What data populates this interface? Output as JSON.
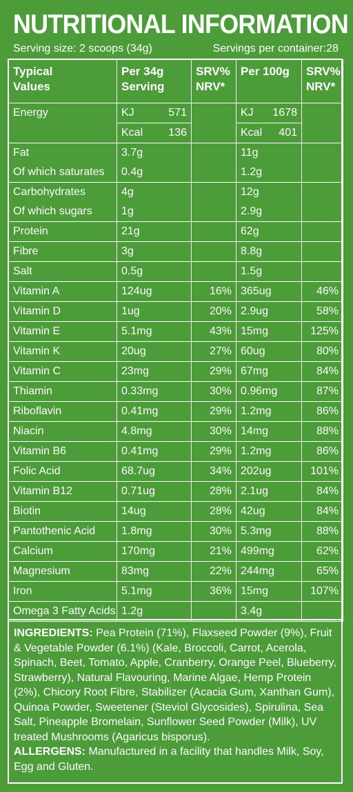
{
  "title": "NUTRITIONAL INFORMATION",
  "serving_size": "Serving size: 2 scoops (34g)",
  "servings_per_container": "Servings per container:28",
  "headers": {
    "col1": [
      "Typical",
      "Values"
    ],
    "col2": [
      "Per 34g",
      "Serving"
    ],
    "col3": [
      "SRV%",
      "NRV*"
    ],
    "col4": "Per 100g",
    "col5": [
      "SRV%",
      "NRV*"
    ]
  },
  "energy": {
    "label": "Energy",
    "kj_label": "KJ",
    "kcal_label": "Kcal",
    "per_serving_kj": "571",
    "per_serving_kcal": "136",
    "per_100g_kj": "1678",
    "per_100g_kcal": "401"
  },
  "fat": {
    "label": "Fat",
    "per_serving": "3.7g",
    "per_100g": "11g",
    "sub_label": "Of which saturates",
    "sub_per_serving": "0.4g",
    "sub_per_100g": "1.2g"
  },
  "carbs": {
    "label": "Carbohydrates",
    "per_serving": "4g",
    "per_100g": "12g",
    "sub_label": "Of which sugars",
    "sub_per_serving": "1g",
    "sub_per_100g": "2.9g"
  },
  "rows": [
    {
      "name": "Protein",
      "serving": "21g",
      "srv1": "",
      "per100": "62g",
      "srv2": ""
    },
    {
      "name": "Fibre",
      "serving": "3g",
      "srv1": "",
      "per100": "8.8g",
      "srv2": ""
    },
    {
      "name": "Salt",
      "serving": "0.5g",
      "srv1": "",
      "per100": "1.5g",
      "srv2": ""
    },
    {
      "name": "Vitamin A",
      "serving": "124ug",
      "srv1": "16%",
      "per100": "365ug",
      "srv2": "46%"
    },
    {
      "name": "Vitamin D",
      "serving": "1ug",
      "srv1": "20%",
      "per100": "2.9ug",
      "srv2": "58%"
    },
    {
      "name": "Vitamin E",
      "serving": "5.1mg",
      "srv1": "43%",
      "per100": "15mg",
      "srv2": "125%"
    },
    {
      "name": "Vitamin K",
      "serving": "20ug",
      "srv1": "27%",
      "per100": "60ug",
      "srv2": "80%"
    },
    {
      "name": "Vitamin C",
      "serving": "23mg",
      "srv1": "29%",
      "per100": "67mg",
      "srv2": "84%"
    },
    {
      "name": "Thiamin",
      "serving": "0.33mg",
      "srv1": "30%",
      "per100": "0.96mg",
      "srv2": "87%"
    },
    {
      "name": "Riboflavin",
      "serving": "0.41mg",
      "srv1": "29%",
      "per100": "1.2mg",
      "srv2": "86%"
    },
    {
      "name": "Niacin",
      "serving": "4.8mg",
      "srv1": "30%",
      "per100": "14mg",
      "srv2": "88%"
    },
    {
      "name": "Vitamin B6",
      "serving": "0.41mg",
      "srv1": "29%",
      "per100": "1.2mg",
      "srv2": "86%"
    },
    {
      "name": "Folic Acid",
      "serving": "68.7ug",
      "srv1": "34%",
      "per100": "202ug",
      "srv2": "101%"
    },
    {
      "name": "Vitamin B12",
      "serving": "0.71ug",
      "srv1": "28%",
      "per100": "2.1ug",
      "srv2": "84%"
    },
    {
      "name": "Biotin",
      "serving": "14ug",
      "srv1": "28%",
      "per100": "42ug",
      "srv2": "84%"
    },
    {
      "name": "Pantothenic Acid",
      "serving": "1.8mg",
      "srv1": "30%",
      "per100": "5.3mg",
      "srv2": "88%"
    },
    {
      "name": "Calcium",
      "serving": "170mg",
      "srv1": "21%",
      "per100": "499mg",
      "srv2": "62%"
    },
    {
      "name": "Magnesium",
      "serving": "83mg",
      "srv1": "22%",
      "per100": "244mg",
      "srv2": "65%"
    },
    {
      "name": "Iron",
      "serving": "5.1mg",
      "srv1": "36%",
      "per100": "15mg",
      "srv2": "107%"
    },
    {
      "name": "Omega 3 Fatty Acids",
      "serving": "1.2g",
      "srv1": "",
      "per100": "3.4g",
      "srv2": ""
    }
  ],
  "ingredients": {
    "label": "INGREDIENTS:",
    "text": " Pea Protein (71%), Flaxseed Powder (9%), Fruit & Vegetable Powder (6.1%) (Kale, Broccoli, Carrot, Acerola, Spinach, Beet, Tomato, Apple, Cranberry, Orange Peel, Blueberry, Strawberry), Natural Flavouring, Marine Algae, Hemp Protein (2%), Chicory Root Fibre, Stabilizer (Acacia Gum, Xanthan Gum), Quinoa Powder, Sweetener (Steviol Glycosides), Spirulina, Sea Salt, Pineapple Bromelain, Sunflower Seed Powder (Milk), UV treated Mushrooms (Agaricus bisporus)."
  },
  "allergens": {
    "label": "ALLERGENS:",
    "text": " Manufactured in a facility that handles Milk, Soy, Egg and Gluten."
  },
  "colors": {
    "background": "#4d9c3a",
    "text": "#ffffff"
  }
}
